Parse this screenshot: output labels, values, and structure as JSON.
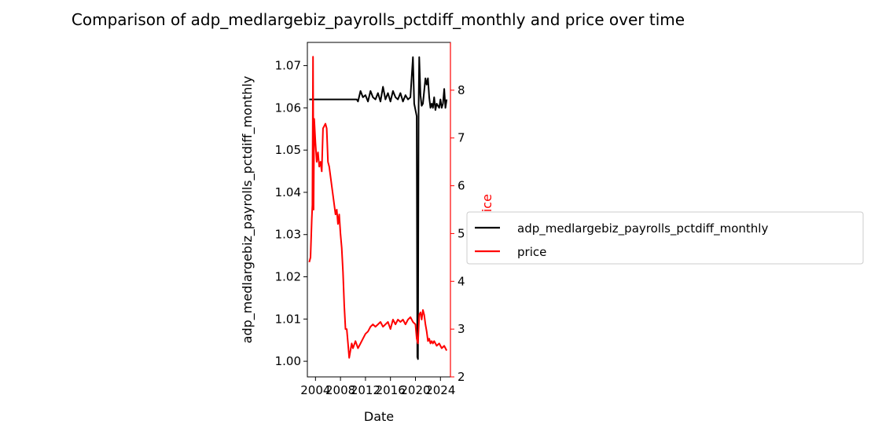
{
  "chart_data": {
    "type": "line",
    "title": "Comparison of adp_medlargebiz_payrolls_pctdiff_monthly and price over time",
    "xlabel": "Date",
    "ylabel_left": "adp_medlargebiz_payrolls_pctdiff_monthly",
    "ylabel_right": "price",
    "xlim": [
      2002.7,
      2025.6
    ],
    "x_ticks": [
      2004,
      2008,
      2012,
      2016,
      2020,
      2024
    ],
    "ylim_left": [
      0.9963,
      1.0755
    ],
    "y_ticks_left": [
      1.0,
      1.01,
      1.02,
      1.03,
      1.04,
      1.05,
      1.06,
      1.07
    ],
    "y_tick_labels_left": [
      "1.00",
      "1.01",
      "1.02",
      "1.03",
      "1.04",
      "1.05",
      "1.06",
      "1.07"
    ],
    "ylim_right": [
      2.0,
      9.0
    ],
    "y_ticks_right": [
      2,
      3,
      4,
      5,
      6,
      7,
      8
    ],
    "legend": {
      "placement": "right, outside plot",
      "entries": [
        {
          "label": "adp_medlargebiz_payrolls_pctdiff_monthly",
          "color": "#000000"
        },
        {
          "label": "price",
          "color": "#ff0000"
        }
      ]
    },
    "series": [
      {
        "name": "adp_medlargebiz_payrolls_pctdiff_monthly",
        "axis": "left",
        "color": "#000000",
        "x": [
          2003.0,
          2010.6,
          2010.8,
          2011.2,
          2011.6,
          2012.0,
          2012.4,
          2012.8,
          2013.2,
          2013.6,
          2014.0,
          2014.4,
          2014.8,
          2015.2,
          2015.6,
          2016.0,
          2016.4,
          2016.8,
          2017.2,
          2017.6,
          2018.0,
          2018.4,
          2018.8,
          2019.2,
          2019.6,
          2019.8,
          2020.0,
          2020.2,
          2020.3,
          2020.4,
          2020.5,
          2020.6,
          2020.8,
          2021.0,
          2021.2,
          2021.4,
          2021.6,
          2021.8,
          2022.0,
          2022.2,
          2022.4,
          2022.6,
          2022.8,
          2023.0,
          2023.2,
          2023.4,
          2023.6,
          2023.8,
          2024.0,
          2024.2,
          2024.4,
          2024.6,
          2024.8,
          2025.0
        ],
        "y": [
          1.062,
          1.062,
          1.0615,
          1.064,
          1.0625,
          1.063,
          1.0615,
          1.064,
          1.0625,
          1.062,
          1.0635,
          1.0615,
          1.065,
          1.062,
          1.0635,
          1.0615,
          1.064,
          1.0625,
          1.062,
          1.0635,
          1.0615,
          1.063,
          1.062,
          1.0625,
          1.072,
          1.061,
          1.0595,
          1.058,
          1.001,
          1.0005,
          1.06,
          1.072,
          1.063,
          1.0605,
          1.061,
          1.064,
          1.067,
          1.0655,
          1.067,
          1.0625,
          1.06,
          1.061,
          1.06,
          1.0625,
          1.0595,
          1.061,
          1.0605,
          1.06,
          1.062,
          1.06,
          1.061,
          1.0645,
          1.06,
          1.062
        ]
      },
      {
        "name": "price",
        "axis": "right",
        "color": "#ff0000",
        "x": [
          2003.0,
          2003.2,
          2003.4,
          2003.5,
          2003.6,
          2003.7,
          2003.8,
          2004.0,
          2004.2,
          2004.4,
          2004.6,
          2004.8,
          2005.0,
          2005.2,
          2005.4,
          2005.6,
          2005.8,
          2006.0,
          2006.2,
          2006.4,
          2006.6,
          2006.8,
          2007.0,
          2007.2,
          2007.4,
          2007.6,
          2007.8,
          2008.0,
          2008.2,
          2008.4,
          2008.6,
          2008.8,
          2009.0,
          2009.2,
          2009.4,
          2009.6,
          2009.8,
          2010.0,
          2010.4,
          2010.8,
          2011.2,
          2011.6,
          2012.0,
          2012.4,
          2012.8,
          2013.2,
          2013.6,
          2014.0,
          2014.4,
          2014.8,
          2015.2,
          2015.6,
          2016.0,
          2016.4,
          2016.8,
          2017.2,
          2017.6,
          2018.0,
          2018.4,
          2018.8,
          2019.2,
          2019.6,
          2020.0,
          2020.2,
          2020.4,
          2020.6,
          2020.8,
          2021.0,
          2021.2,
          2021.4,
          2021.6,
          2021.8,
          2022.0,
          2022.2,
          2022.4,
          2022.6,
          2022.8,
          2023.0,
          2023.4,
          2023.8,
          2024.2,
          2024.6,
          2025.0
        ],
        "y": [
          4.4,
          4.5,
          5.3,
          5.6,
          8.7,
          5.5,
          7.4,
          6.9,
          6.5,
          6.7,
          6.4,
          6.5,
          6.3,
          7.2,
          7.25,
          7.3,
          7.2,
          6.5,
          6.4,
          6.2,
          6.0,
          5.8,
          5.6,
          5.4,
          5.5,
          5.2,
          5.4,
          5.0,
          4.7,
          4.2,
          3.5,
          3.0,
          3.0,
          2.7,
          2.4,
          2.55,
          2.7,
          2.6,
          2.75,
          2.6,
          2.7,
          2.8,
          2.9,
          2.95,
          3.05,
          3.1,
          3.05,
          3.1,
          3.15,
          3.05,
          3.1,
          3.15,
          3.0,
          3.2,
          3.1,
          3.2,
          3.15,
          3.2,
          3.1,
          3.2,
          3.25,
          3.15,
          3.1,
          2.8,
          2.7,
          3.3,
          3.35,
          3.2,
          3.4,
          3.3,
          3.1,
          2.95,
          2.75,
          2.8,
          2.7,
          2.75,
          2.7,
          2.75,
          2.65,
          2.7,
          2.6,
          2.65,
          2.55
        ]
      }
    ]
  }
}
